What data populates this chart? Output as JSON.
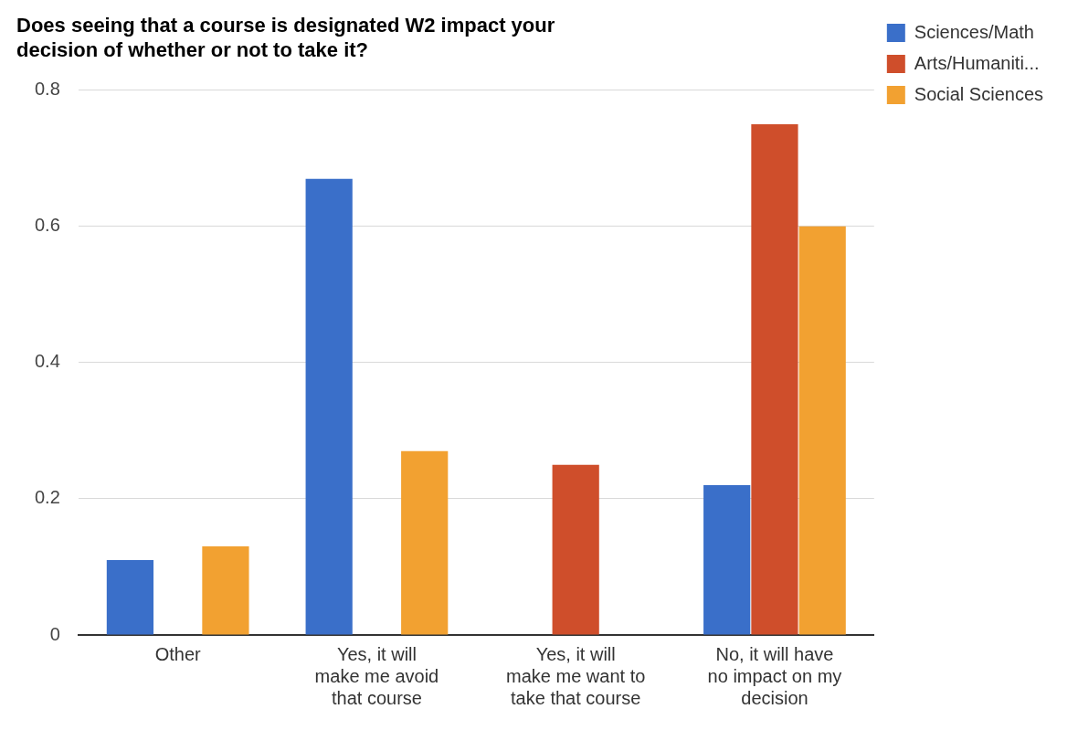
{
  "chart_data": {
    "type": "bar",
    "title": "Does seeing that a course is designated W2 impact your decision of whether or not to take it?",
    "categories": [
      "Other",
      "Yes, it will make me avoid that course",
      "Yes, it will make me want to take that course",
      "No, it will have no impact on my decision"
    ],
    "series": [
      {
        "name": "Sciences/Math",
        "color": "#3a6fc9",
        "values": [
          0.11,
          0.67,
          null,
          0.22
        ]
      },
      {
        "name": "Arts/Humaniti...",
        "color": "#cf4e2b",
        "values": [
          null,
          null,
          0.25,
          0.75
        ]
      },
      {
        "name": "Social Sciences",
        "color": "#f2a131",
        "values": [
          0.13,
          0.27,
          null,
          0.6
        ]
      }
    ],
    "ylim": [
      0,
      0.8
    ],
    "yticks": [
      0,
      0.2,
      0.4,
      0.6,
      0.8
    ],
    "grid": "y",
    "legend": "right"
  }
}
